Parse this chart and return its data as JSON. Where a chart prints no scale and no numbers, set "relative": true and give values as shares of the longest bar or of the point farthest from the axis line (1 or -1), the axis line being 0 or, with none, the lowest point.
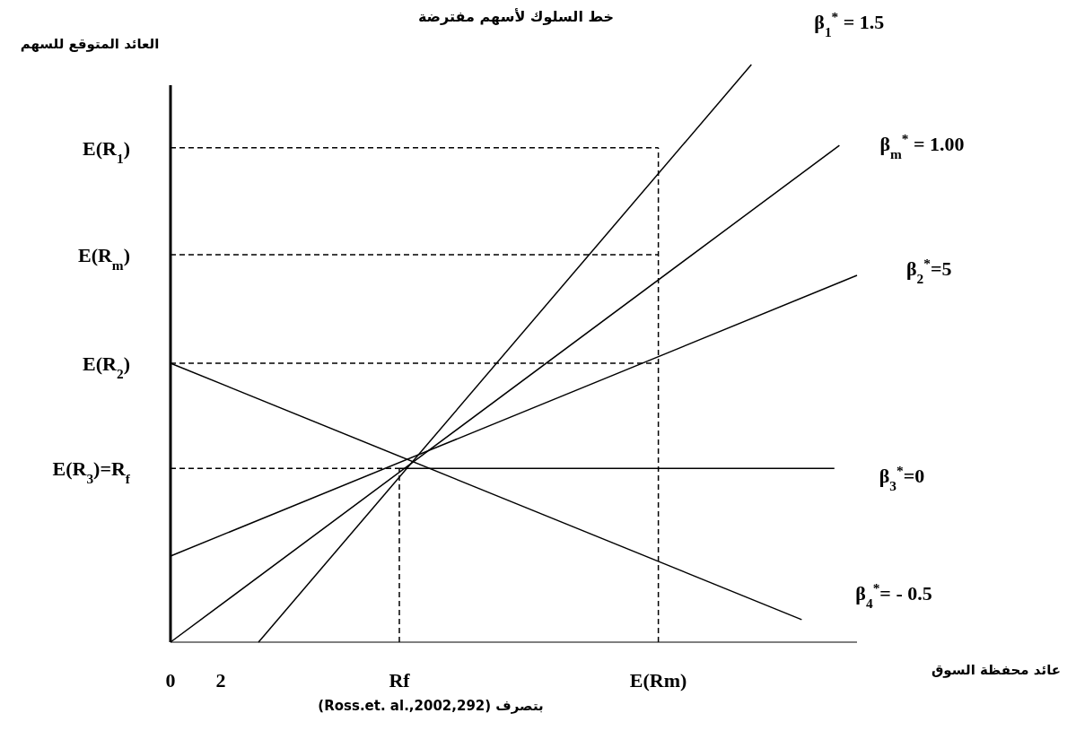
{
  "chart_data": {
    "type": "line",
    "relative": true,
    "title": "خط السلوك لأسهم مفترضة",
    "ylabel": "العائد المتوقع للسهم",
    "xlim": [
      0,
      27.3
    ],
    "xticks": [
      0,
      2,
      {
        "value": 9.1,
        "label": "Rf"
      },
      {
        "value": 19.4,
        "label": "E(Rm)"
      }
    ],
    "tick_labels": "x",
    "marker": "none",
    "series": [
      {
        "name": "β$_{1}$$^{*}$ = 1.5",
        "color": "#000000",
        "line_style": "solid",
        "x": [
          3.5,
          23.1
        ],
        "values": [
          0,
          1.0
        ]
      },
      {
        "name": "β$_{m}$$^{*}$ = 1.00",
        "color": "#000000",
        "line_style": "solid",
        "x": [
          0,
          26.6
        ],
        "values": [
          0,
          0.86
        ]
      },
      {
        "name": "β$_{2}$$^{*}$=5",
        "color": "#000000",
        "line_style": "solid",
        "x": [
          0,
          27.3
        ],
        "values": [
          0.149,
          0.635
        ]
      },
      {
        "name": "β$_{3}$$^{*}$=0",
        "color": "#000000",
        "line_style": "solid",
        "x": [
          9.1,
          26.4
        ],
        "values": [
          0.301,
          0.301
        ]
      },
      {
        "name": "β$_{4}$$^{*}$= - 0.5",
        "color": "#000000",
        "line_style": "solid",
        "x": [
          0,
          25.1
        ],
        "values": [
          0.483,
          0.039
        ]
      },
      {
        "color": "#000000",
        "line_style": "dashed",
        "x": [
          0,
          19.4
        ],
        "values": [
          0.856,
          0.856
        ]
      },
      {
        "color": "#000000",
        "line_style": "dashed",
        "x": [
          0,
          19.4
        ],
        "values": [
          0.671,
          0.671
        ]
      },
      {
        "color": "#000000",
        "line_style": "dashed",
        "x": [
          0,
          19.4
        ],
        "values": [
          0.483,
          0.483
        ]
      },
      {
        "color": "#000000",
        "line_style": "dashed",
        "x": [
          0,
          9.1
        ],
        "values": [
          0.301,
          0.301
        ]
      },
      {
        "color": "#000000",
        "line_style": "dashed",
        "x": [
          9.1,
          9.1
        ],
        "values": [
          0,
          0.301
        ]
      },
      {
        "color": "#000000",
        "line_style": "dashed",
        "x": [
          19.4,
          19.4
        ],
        "values": [
          0,
          0.856
        ]
      }
    ],
    "annotations": [
      "E(R$_{1}$)",
      "E(R$_{m}$)",
      "E(R$_{2}$)",
      "E(R$_{3}$)=R$_{f}$",
      "عائد محفظة السوق",
      "بتصرف (Ross.et. al.,2002,292)"
    ]
  }
}
